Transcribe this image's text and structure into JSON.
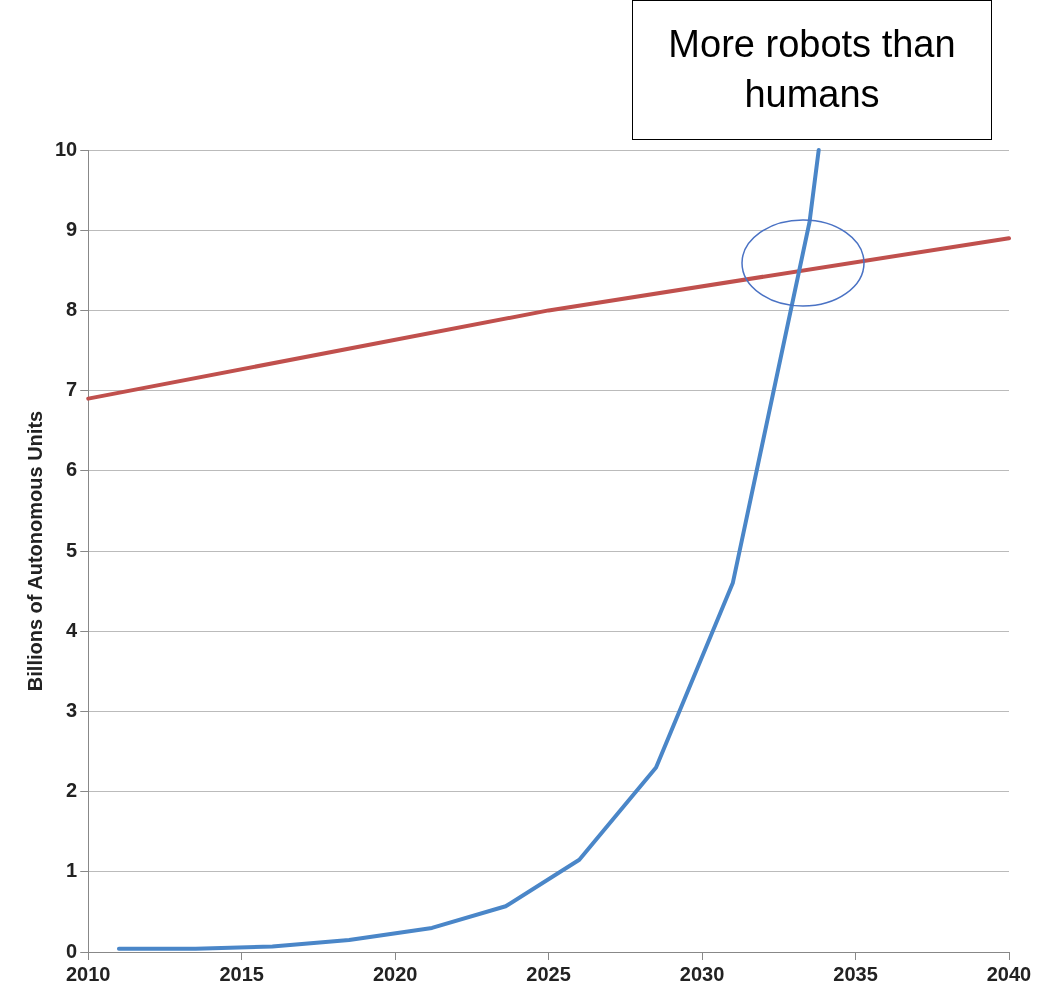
{
  "chart_data": {
    "type": "line",
    "ylabel": "Billions of Autonomous Units",
    "annotations": [
      "More robots than humans"
    ],
    "xlim": [
      2010,
      2040
    ],
    "xticks": [
      2010,
      2015,
      2020,
      2025,
      2030,
      2035,
      2040
    ],
    "ylim": [
      0,
      10
    ],
    "yticks": [
      0,
      1,
      2,
      3,
      4,
      5,
      6,
      7,
      8,
      9,
      10
    ],
    "grid": "y",
    "marker": "none",
    "line_style": "solid",
    "series": [
      {
        "color": "#4a86c8",
        "x": [
          2011,
          2013.5,
          2016,
          2018.5,
          2021.2,
          2023.6,
          2026,
          2028.5,
          2031,
          2033.5,
          2033.8
        ],
        "values": [
          0.04,
          0.04,
          0.07,
          0.15,
          0.3,
          0.57,
          1.15,
          2.3,
          4.6,
          9.1,
          10
        ]
      },
      {
        "color": "#c0504d",
        "x": [
          2010,
          2025,
          2040
        ],
        "values": [
          6.9,
          8.0,
          8.9
        ]
      }
    ]
  }
}
